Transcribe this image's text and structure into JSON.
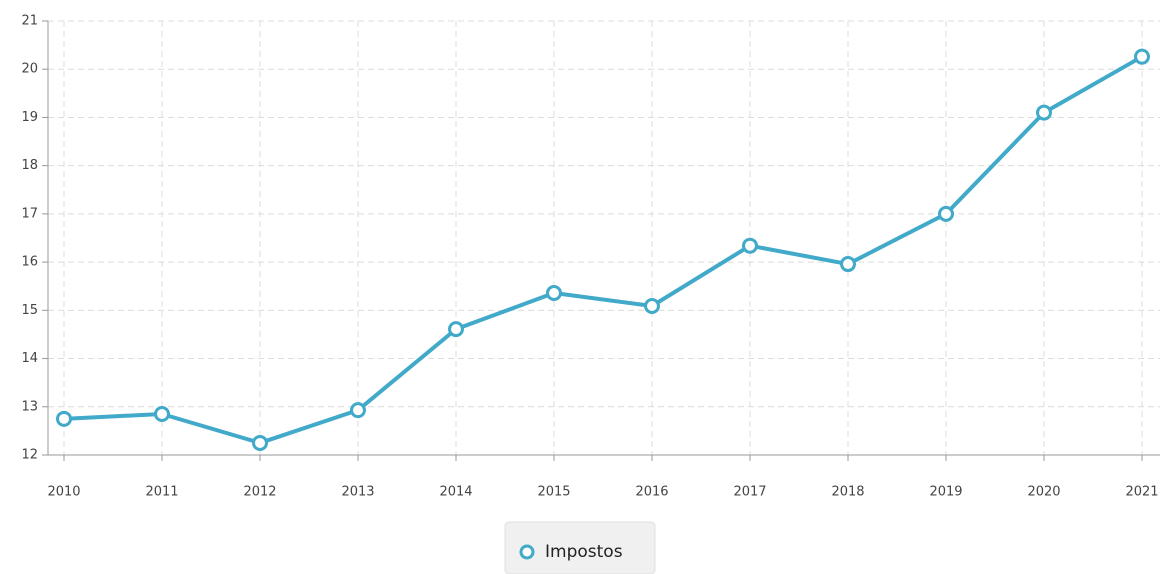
{
  "chart_data": {
    "type": "line",
    "categories": [
      "2010",
      "2011",
      "2012",
      "2013",
      "2014",
      "2015",
      "2016",
      "2017",
      "2018",
      "2019",
      "2020",
      "2021"
    ],
    "series": [
      {
        "name": "Impostos",
        "color": "#41a9c9",
        "values": [
          12.75,
          12.85,
          12.25,
          12.93,
          14.61,
          15.36,
          15.09,
          16.34,
          15.96,
          17.0,
          19.1,
          20.26
        ]
      }
    ],
    "ylim": [
      12,
      21
    ],
    "yticks": [
      12,
      13,
      14,
      15,
      16,
      17,
      18,
      19,
      20,
      21
    ],
    "grid": true
  }
}
